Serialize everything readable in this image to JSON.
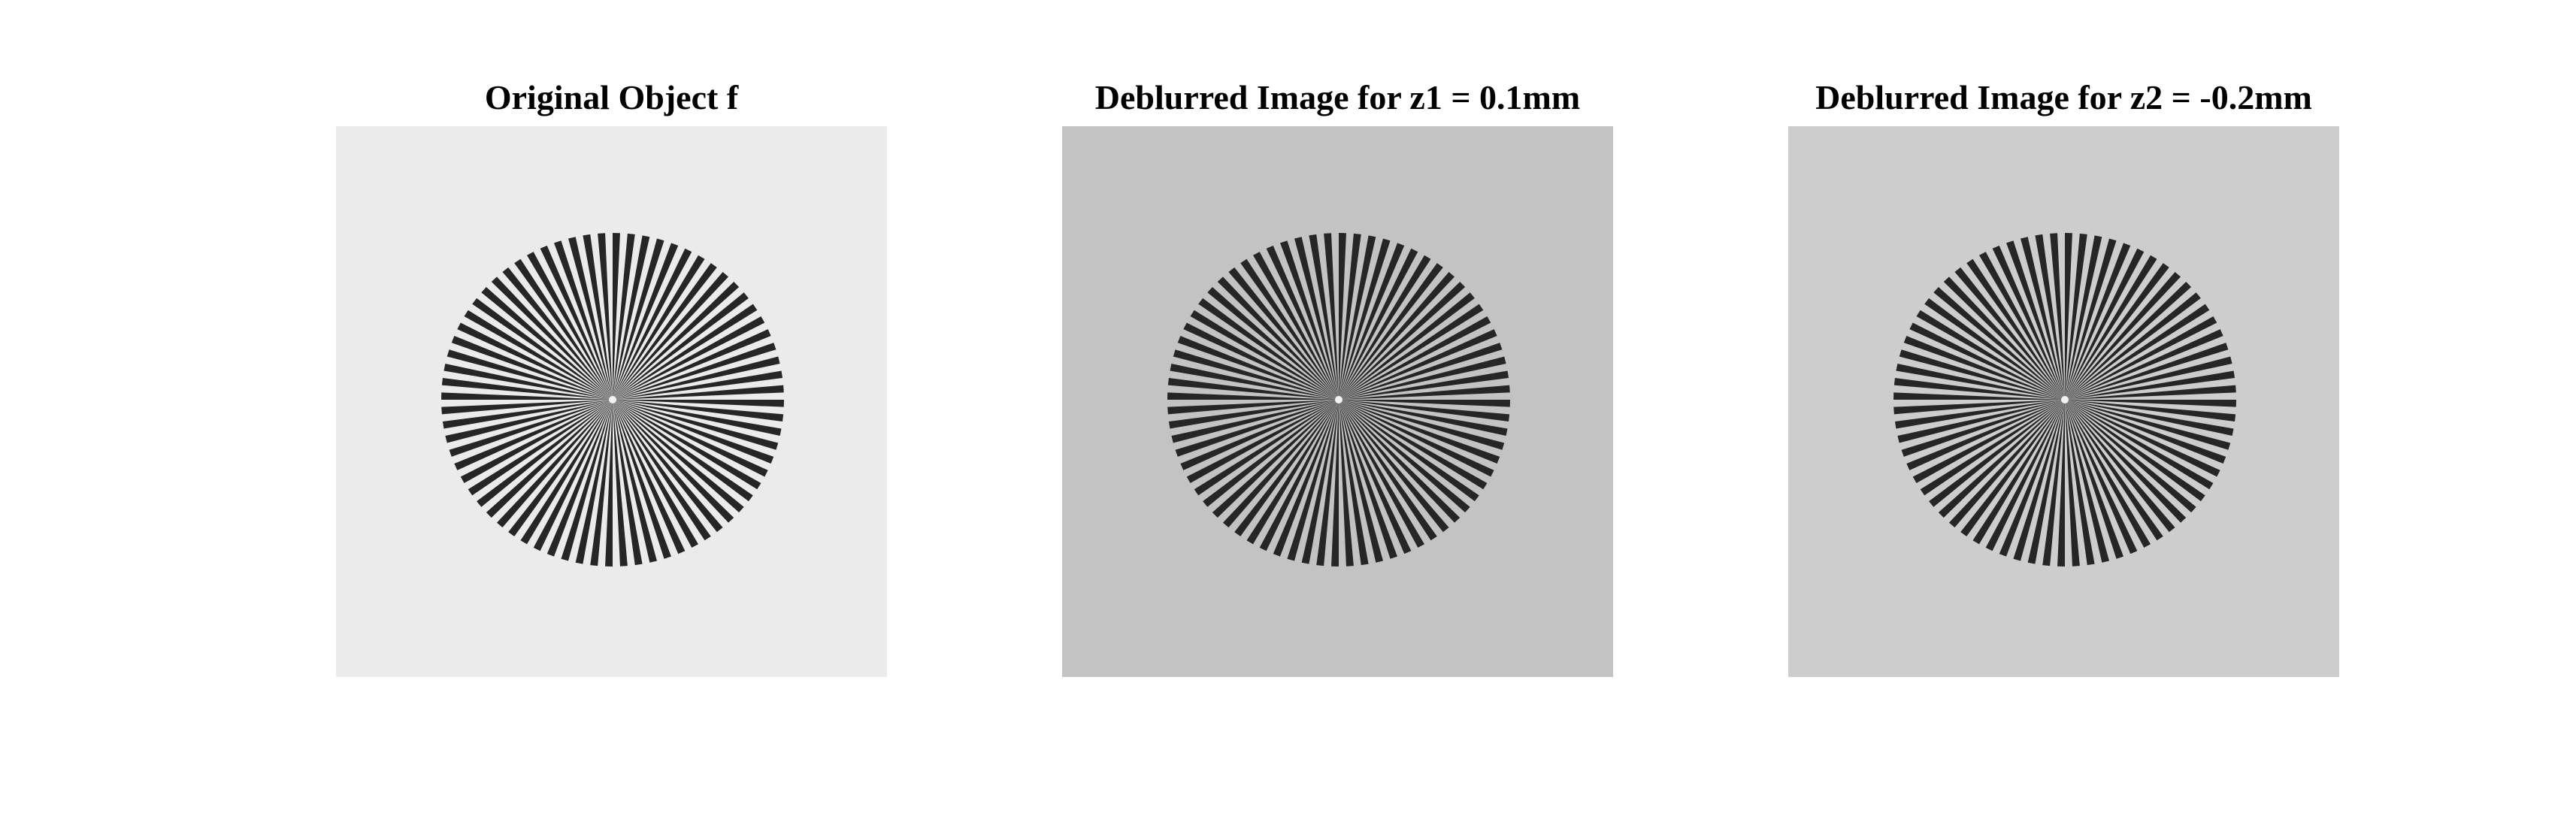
{
  "panels": [
    {
      "title": "Original Object f",
      "background": "#ebebeb",
      "pattern": "siemens-star-icon"
    },
    {
      "title": "Deblurred Image for z1 = 0.1mm",
      "background": "#c3c3c3",
      "pattern": "siemens-star-icon"
    },
    {
      "title": "Deblurred Image for z2 = -0.2mm",
      "background": "#cdcdcd",
      "pattern": "siemens-star-icon"
    }
  ],
  "colors": {
    "spoke": "#262626",
    "center_dot": "#f2f2f2"
  }
}
